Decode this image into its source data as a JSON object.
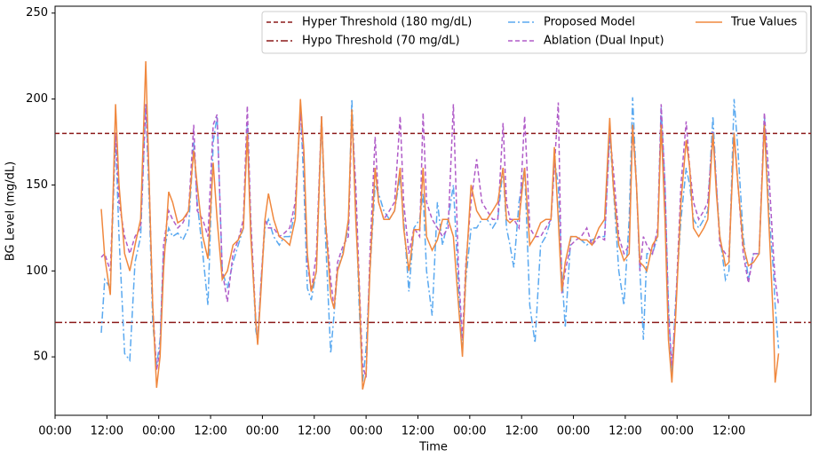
{
  "chart_data": {
    "type": "line",
    "xlabel": "Time",
    "ylabel": "BG Level (mg/dL)",
    "xlim": [
      0,
      175
    ],
    "ylim": [
      16,
      254
    ],
    "yticks": [
      50,
      100,
      150,
      200,
      250
    ],
    "xticks": [
      {
        "value": 0,
        "label": "00:00"
      },
      {
        "value": 12,
        "label": "12:00"
      },
      {
        "value": 24,
        "label": "00:00"
      },
      {
        "value": 36,
        "label": "12:00"
      },
      {
        "value": 48,
        "label": "00:00"
      },
      {
        "value": 60,
        "label": "12:00"
      },
      {
        "value": 72,
        "label": "00:00"
      },
      {
        "value": 84,
        "label": "12:00"
      },
      {
        "value": 96,
        "label": "00:00"
      },
      {
        "value": 108,
        "label": "12:00"
      },
      {
        "value": 120,
        "label": "00:00"
      },
      {
        "value": 132,
        "label": "12:00"
      },
      {
        "value": 144,
        "label": "00:00"
      },
      {
        "value": 156,
        "label": "12:00"
      }
    ],
    "thresholds": [
      {
        "name": "Hyper Threshold (180 mg/dL)",
        "value": 180,
        "color": "#8b1a1a",
        "style": "dashed"
      },
      {
        "name": "Hypo Threshold (70 mg/dL)",
        "value": 70,
        "color": "#8b1a1a",
        "style": "dashdot"
      }
    ],
    "x": [
      10.7,
      11.5,
      12.8,
      14.0,
      14.8,
      16.1,
      17.3,
      18.5,
      19.8,
      21.0,
      21.8,
      22.6,
      23.5,
      24.3,
      25.1,
      26.3,
      27.2,
      28.4,
      29.6,
      30.9,
      32.1,
      32.9,
      34.2,
      35.4,
      36.6,
      37.5,
      38.7,
      39.9,
      41.2,
      42.4,
      43.6,
      44.5,
      45.3,
      46.5,
      46.9,
      47.7,
      48.6,
      49.4,
      50.6,
      51.9,
      53.1,
      54.3,
      55.6,
      56.8,
      57.6,
      58.4,
      59.3,
      60.5,
      61.7,
      62.6,
      63.8,
      64.6,
      65.4,
      66.7,
      67.9,
      68.7,
      69.6,
      70.4,
      71.2,
      72.0,
      72.9,
      74.1,
      74.9,
      76.1,
      77.4,
      78.6,
      79.9,
      80.7,
      81.9,
      83.1,
      84.4,
      85.2,
      86.0,
      87.3,
      88.5,
      89.7,
      91.0,
      92.2,
      93.4,
      94.3,
      95.1,
      96.3,
      97.6,
      98.8,
      100.0,
      101.3,
      102.5,
      103.7,
      104.5,
      105.3,
      106.2,
      107.4,
      108.7,
      109.9,
      111.1,
      112.4,
      113.6,
      114.8,
      115.6,
      116.5,
      117.3,
      118.1,
      119.4,
      120.6,
      121.8,
      123.1,
      124.3,
      125.9,
      127.2,
      128.4,
      129.2,
      130.5,
      131.7,
      132.9,
      133.7,
      134.6,
      135.4,
      136.2,
      137.0,
      138.3,
      139.5,
      140.3,
      141.2,
      142.0,
      142.8,
      143.6,
      144.9,
      146.1,
      146.9,
      147.8,
      149.0,
      150.2,
      151.1,
      152.3,
      153.1,
      153.9,
      155.2,
      156.0,
      157.2,
      158.1,
      159.3,
      160.5,
      161.7,
      163.0,
      164.2,
      165.4,
      166.3,
      166.7,
      167.5
    ],
    "series": [
      {
        "name": "Proposed Model",
        "color": "#5aa9f0",
        "style": "dashdot",
        "values": [
          64,
          95,
          90,
          178,
          120,
          52,
          48,
          105,
          120,
          197,
          140,
          70,
          45,
          60,
          110,
          125,
          120,
          122,
          118,
          125,
          175,
          140,
          110,
          80,
          175,
          190,
          100,
          90,
          105,
          115,
          125,
          185,
          125,
          65,
          60,
          95,
          125,
          130,
          120,
          115,
          120,
          120,
          135,
          195,
          150,
          90,
          83,
          100,
          190,
          120,
          52,
          75,
          100,
          112,
          125,
          200,
          140,
          80,
          35,
          55,
          100,
          150,
          145,
          135,
          130,
          135,
          155,
          130,
          88,
          125,
          130,
          145,
          100,
          74,
          140,
          115,
          130,
          150,
          90,
          55,
          95,
          125,
          125,
          130,
          130,
          125,
          130,
          160,
          125,
          115,
          102,
          140,
          160,
          80,
          58,
          115,
          120,
          130,
          165,
          150,
          100,
          67,
          120,
          120,
          118,
          115,
          118,
          120,
          120,
          180,
          150,
          100,
          80,
          130,
          201,
          150,
          100,
          60,
          110,
          110,
          120,
          195,
          150,
          80,
          40,
          80,
          130,
          160,
          150,
          130,
          125,
          130,
          135,
          190,
          150,
          120,
          95,
          100,
          200,
          170,
          120,
          95,
          110,
          110,
          190,
          130,
          100,
          80,
          55
        ]
      },
      {
        "name": "Ablation (Dual Input)",
        "color": "#b05cc8",
        "style": "dashed",
        "values": [
          108,
          110,
          100,
          180,
          140,
          120,
          110,
          120,
          125,
          197,
          150,
          80,
          42,
          55,
          115,
          135,
          130,
          125,
          128,
          135,
          185,
          135,
          130,
          120,
          185,
          191,
          100,
          82,
          110,
          118,
          130,
          196,
          130,
          70,
          58,
          95,
          130,
          125,
          125,
          120,
          122,
          125,
          140,
          192,
          165,
          105,
          88,
          110,
          190,
          130,
          95,
          78,
          105,
          115,
          120,
          190,
          150,
          95,
          45,
          38,
          110,
          178,
          140,
          130,
          135,
          140,
          190,
          140,
          110,
          125,
          120,
          192,
          140,
          130,
          125,
          120,
          125,
          197,
          100,
          60,
          105,
          140,
          165,
          140,
          135,
          130,
          130,
          186,
          140,
          130,
          130,
          125,
          190,
          125,
          120,
          120,
          125,
          130,
          160,
          198,
          87,
          100,
          115,
          118,
          120,
          125,
          115,
          120,
          118,
          180,
          160,
          120,
          110,
          115,
          185,
          150,
          100,
          120,
          115,
          110,
          125,
          197,
          150,
          75,
          45,
          75,
          150,
          187,
          160,
          140,
          130,
          135,
          140,
          181,
          150,
          115,
          110,
          108,
          180,
          150,
          110,
          93,
          110,
          110,
          192,
          150,
          110,
          95,
          80
        ]
      },
      {
        "name": "True Values",
        "color": "#f0883e",
        "style": "solid",
        "values": [
          136,
          108,
          86,
          197,
          150,
          110,
          100,
          115,
          130,
          222,
          150,
          80,
          32,
          50,
          100,
          146,
          140,
          128,
          130,
          135,
          170,
          150,
          120,
          107,
          163,
          130,
          95,
          100,
          115,
          118,
          125,
          180,
          120,
          70,
          57,
          90,
          130,
          145,
          130,
          120,
          118,
          115,
          130,
          200,
          170,
          110,
          88,
          100,
          190,
          130,
          85,
          78,
          100,
          110,
          130,
          194,
          130,
          90,
          31,
          40,
          100,
          160,
          140,
          130,
          130,
          135,
          160,
          125,
          100,
          124,
          124,
          160,
          120,
          112,
          118,
          130,
          130,
          120,
          80,
          50,
          100,
          150,
          135,
          130,
          130,
          135,
          140,
          160,
          130,
          128,
          130,
          130,
          160,
          115,
          120,
          128,
          130,
          130,
          172,
          130,
          88,
          105,
          120,
          120,
          118,
          118,
          115,
          125,
          130,
          189,
          150,
          115,
          106,
          110,
          185,
          150,
          105,
          103,
          100,
          115,
          120,
          185,
          130,
          60,
          35,
          70,
          140,
          176,
          160,
          125,
          120,
          125,
          130,
          180,
          145,
          120,
          103,
          105,
          180,
          150,
          115,
          103,
          105,
          110,
          185,
          120,
          70,
          35,
          52
        ]
      }
    ]
  }
}
